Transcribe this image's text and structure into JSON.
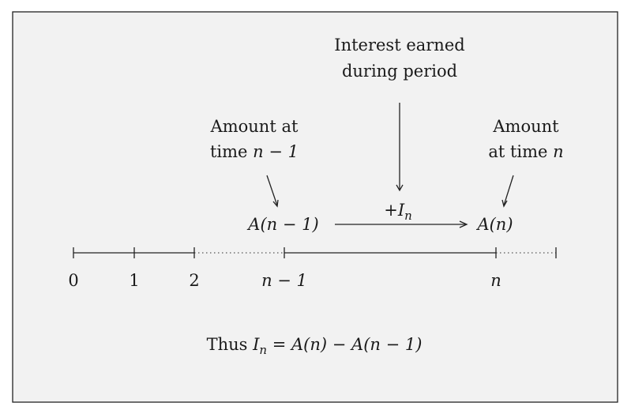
{
  "annotations": {
    "interest_line1": "Interest earned",
    "interest_line2": "during period",
    "prev_line1": "Amount at",
    "prev_line2_text": "time ",
    "prev_line2_math": "n − 1",
    "curr_line1": "Amount",
    "curr_line2_text": "at time ",
    "curr_line2_math": "n"
  },
  "amounts": {
    "prev": "A(n − 1)",
    "curr": "A(n)",
    "increment_sign": "+",
    "increment_var": "I",
    "increment_sub": "n"
  },
  "timeline": {
    "ticks": [
      {
        "label": "0"
      },
      {
        "label": "1"
      },
      {
        "label": "2"
      },
      {
        "label": "n − 1"
      },
      {
        "label": "n"
      }
    ]
  },
  "conclusion": {
    "prefix": "Thus ",
    "var": "I",
    "sub": "n",
    "rest": " = A(n) − A(n − 1)"
  }
}
